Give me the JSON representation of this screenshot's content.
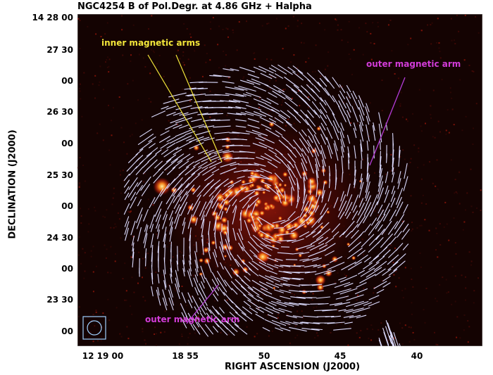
{
  "title": "NGC4254  B of Pol.Degr. at 4.86 GHz + Halpha",
  "axes": {
    "x_title": "RIGHT ASCENSION (J2000)",
    "y_title": "DECLINATION (J2000)",
    "x_ticks": [
      "12 19 00",
      "18 55",
      "50",
      "45",
      "40"
    ],
    "y_ticks": [
      "14 28 00",
      "27 30",
      "00",
      "26 30",
      "00",
      "25 30",
      "00",
      "24 30",
      "00",
      "23 30",
      "00"
    ]
  },
  "annotations": {
    "inner": "inner magnetic arms",
    "outer_top": "outer magnetic arm",
    "outer_bottom": "outer magnetic arm"
  },
  "colors": {
    "background": "#140302",
    "inner_label": "#f2e63a",
    "outer_label": "#d23cd8",
    "vectors": "#dcdcff",
    "beam": "#9fd0ff"
  }
}
